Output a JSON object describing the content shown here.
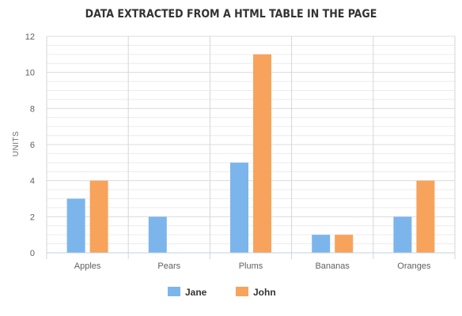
{
  "chart_data": {
    "type": "bar",
    "title": "DATA EXTRACTED FROM A HTML TABLE IN THE PAGE",
    "categories": [
      "Apples",
      "Pears",
      "Plums",
      "Bananas",
      "Oranges"
    ],
    "series": [
      {
        "name": "Jane",
        "values": [
          3,
          2,
          5,
          1,
          2
        ],
        "color": "#7cb5ec"
      },
      {
        "name": "John",
        "values": [
          4,
          0,
          11,
          1,
          4
        ],
        "color": "#f7a35c"
      }
    ],
    "xlabel": "",
    "ylabel": "UNITS",
    "ylim": [
      0,
      12
    ],
    "yticks": [
      "0",
      "2",
      "4",
      "6",
      "8",
      "10",
      "12"
    ],
    "minor_grid_step": 0.5,
    "grid": true,
    "legend_position": "bottom-center"
  }
}
